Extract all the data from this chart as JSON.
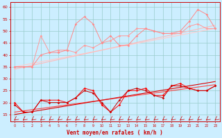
{
  "x": [
    0,
    1,
    2,
    3,
    4,
    5,
    6,
    7,
    8,
    9,
    10,
    11,
    12,
    13,
    14,
    15,
    16,
    17,
    18,
    19,
    20,
    21,
    22,
    23
  ],
  "upper_jagged1": [
    35,
    35,
    35,
    48,
    41,
    42,
    42,
    41,
    44,
    43,
    45,
    46,
    48,
    48,
    51,
    51,
    50,
    49,
    49,
    49,
    52,
    53,
    51,
    51
  ],
  "upper_jagged2": [
    35,
    35,
    35,
    40,
    41,
    41,
    42,
    53,
    56,
    53,
    45,
    48,
    44,
    44,
    48,
    51,
    50,
    49,
    49,
    50,
    54,
    59,
    57,
    51
  ],
  "upper_straight1": [
    35,
    35.7,
    36.4,
    37.1,
    37.8,
    38.5,
    39.2,
    39.9,
    40.6,
    41.3,
    42,
    42.7,
    43.4,
    44.1,
    44.8,
    45.5,
    46.2,
    46.9,
    47.6,
    48.3,
    49,
    49.7,
    50.4,
    51.1
  ],
  "upper_straight2": [
    34,
    34.8,
    35.6,
    36.4,
    37.2,
    38,
    38.8,
    39.6,
    40.4,
    41.2,
    42,
    42.8,
    43.6,
    44.4,
    45.2,
    46,
    46.8,
    47.6,
    48.4,
    49.2,
    50,
    50.8,
    51.6,
    52.4
  ],
  "lower_jagged1": [
    20,
    16,
    16,
    21,
    21,
    21,
    20,
    22,
    26,
    25,
    19,
    16,
    19,
    25,
    25,
    26,
    23,
    23,
    27,
    28,
    26,
    25,
    25,
    27
  ],
  "lower_jagged2": [
    19,
    16,
    16,
    21,
    20,
    20,
    20,
    22,
    25,
    24,
    20,
    16,
    21,
    25,
    26,
    25,
    23,
    22,
    27,
    27,
    26,
    25,
    25,
    27
  ],
  "lower_straight1": [
    16,
    16.5,
    17,
    17.5,
    18,
    18.5,
    19,
    19.5,
    20,
    20.5,
    21,
    21.5,
    22,
    22.5,
    23,
    23.5,
    24,
    24.5,
    25,
    25.5,
    26,
    26.5,
    27,
    27.5
  ],
  "lower_straight2": [
    15,
    15.6,
    16.2,
    16.8,
    17.4,
    18,
    18.6,
    19.2,
    19.8,
    20.4,
    21,
    21.6,
    22.2,
    22.8,
    23.4,
    24,
    24.6,
    25.2,
    25.8,
    26.4,
    27,
    27.6,
    28.2,
    28.8
  ],
  "bg_color": "#cceeff",
  "grid_color": "#99cccc",
  "xlabel": "Vent moyen/en rafales ( km/h )",
  "ylim": [
    12,
    62
  ],
  "xlim": [
    -0.5,
    23.5
  ],
  "yticks": [
    15,
    20,
    25,
    30,
    35,
    40,
    45,
    50,
    55,
    60
  ]
}
